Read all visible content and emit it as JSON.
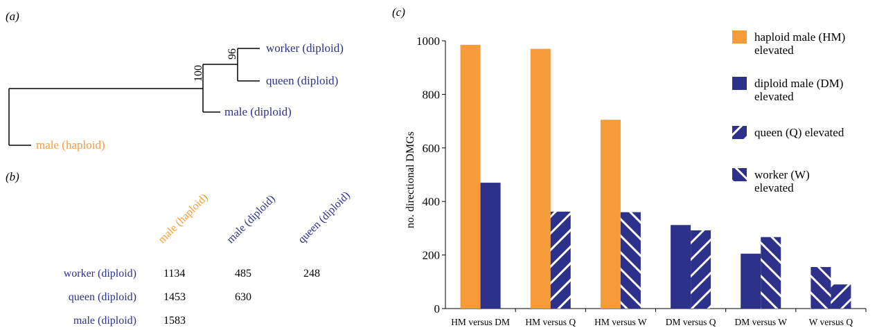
{
  "colors": {
    "haploid": "#f59b3a",
    "diploid": "#2e3189",
    "black": "#000000"
  },
  "panel_labels": {
    "a": "(a)",
    "b": "(b)",
    "c": "(c)"
  },
  "tree": {
    "leaves": {
      "worker": "worker (diploid)",
      "queen": "queen (diploid)",
      "male_diploid": "male (diploid)",
      "male_haploid": "male (haploid)"
    },
    "bootstrap": {
      "node100": "100",
      "node96": "96"
    }
  },
  "matrix": {
    "columns": [
      "male (haploid)",
      "male (diploid)",
      "queen (diploid)"
    ],
    "rows": [
      {
        "label": "worker (diploid)",
        "values": [
          "1134",
          "485",
          "248"
        ]
      },
      {
        "label": "queen (diploid)",
        "values": [
          "1453",
          "630",
          ""
        ]
      },
      {
        "label": "male (diploid)",
        "values": [
          "1583",
          "",
          ""
        ]
      }
    ]
  },
  "chart_data": {
    "type": "bar",
    "ylabel": "no. directional DMGs",
    "xlabel": "",
    "ylim": [
      0,
      1000
    ],
    "yticks": [
      "0",
      "200",
      "400",
      "600",
      "800",
      "1000"
    ],
    "categories": [
      "HM versus DM",
      "HM versus Q",
      "HM versus W",
      "DM versus Q",
      "DM versus W",
      "W versus Q"
    ],
    "bars": [
      [
        {
          "series": "HM",
          "value": 985
        },
        {
          "series": "DM",
          "value": 470
        }
      ],
      [
        {
          "series": "HM",
          "value": 970
        },
        {
          "series": "Q",
          "value": 362
        }
      ],
      [
        {
          "series": "HM",
          "value": 705
        },
        {
          "series": "W",
          "value": 360
        }
      ],
      [
        {
          "series": "DM",
          "value": 312
        },
        {
          "series": "Q",
          "value": 292
        }
      ],
      [
        {
          "series": "DM",
          "value": 205
        },
        {
          "series": "W",
          "value": 267
        }
      ],
      [
        {
          "series": "W",
          "value": 155
        },
        {
          "series": "Q",
          "value": 90
        }
      ]
    ],
    "series": [
      {
        "key": "HM",
        "name": "haploid male (HM) elevated",
        "legend_lines": [
          "haploid male (HM)",
          "elevated"
        ],
        "pattern": "solid-orange"
      },
      {
        "key": "DM",
        "name": "diploid male (DM) elevated",
        "legend_lines": [
          "diploid male (DM)",
          "elevated"
        ],
        "pattern": "solid-blue"
      },
      {
        "key": "Q",
        "name": "queen (Q) elevated",
        "legend_lines": [
          "queen (Q) elevated"
        ],
        "pattern": "forward-hatch"
      },
      {
        "key": "W",
        "name": "worker (W) elevated",
        "legend_lines": [
          "worker (W)",
          "elevated"
        ],
        "pattern": "back-hatch"
      }
    ],
    "legend_position": "top-right",
    "grid": false
  }
}
